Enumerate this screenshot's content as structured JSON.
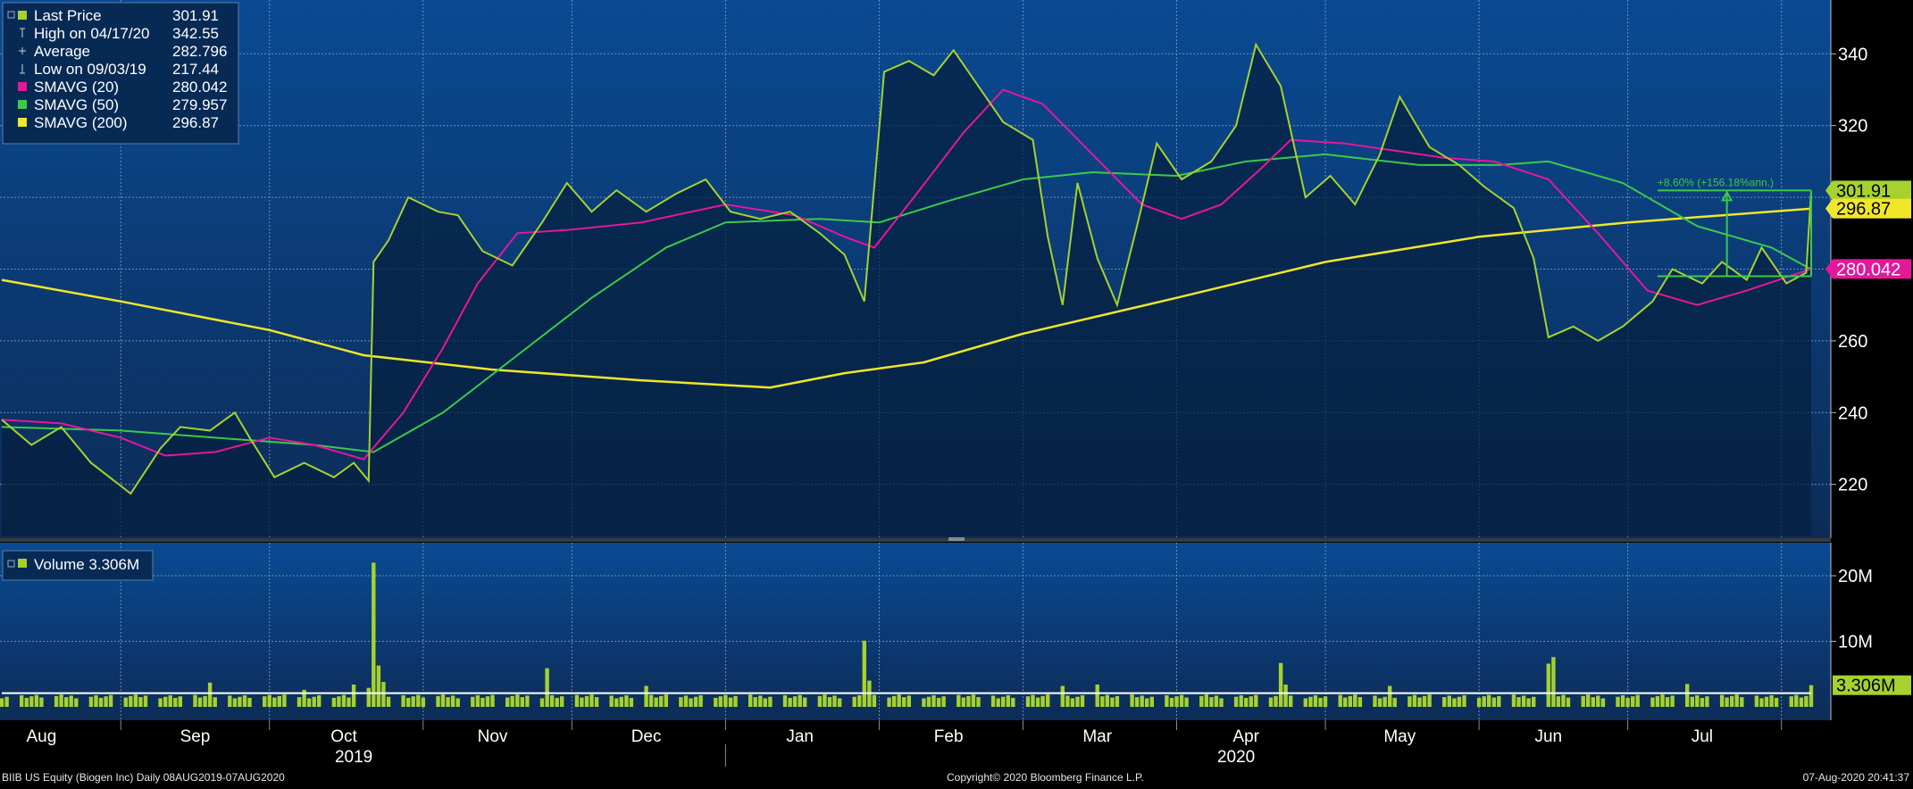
{
  "colors": {
    "price": "#a6d12f",
    "sma20": "#e5179a",
    "sma50": "#3cc94a",
    "sma200": "#f0e62a",
    "volume": "#a6d12f",
    "volume_avg": "#ffffff",
    "grid": "#6e8fb8",
    "bg_top": "#0a4a93",
    "bg_bottom": "#0c2c57"
  },
  "legend": {
    "items": [
      {
        "label": "Last Price",
        "value": "301.91",
        "icon": "filled-square",
        "color": "#a6d12f"
      },
      {
        "label": "High on 04/17/20",
        "value": "342.55",
        "icon": "high-marker",
        "color": "#cfcfcf"
      },
      {
        "label": "Average",
        "value": "282.796",
        "icon": "average-marker",
        "color": "#cfcfcf"
      },
      {
        "label": "Low on 09/03/19",
        "value": "217.44",
        "icon": "low-marker",
        "color": "#cfcfcf"
      },
      {
        "label": "SMAVG (20)",
        "value": "280.042",
        "icon": "filled-square",
        "color": "#e5179a"
      },
      {
        "label": "SMAVG (50)",
        "value": "279.957",
        "icon": "filled-square",
        "color": "#3cc94a"
      },
      {
        "label": "SMAVG (200)",
        "value": "296.87",
        "icon": "filled-square",
        "color": "#f0e62a"
      }
    ]
  },
  "volume_legend": {
    "label": "Volume 3.306M"
  },
  "annotation": {
    "text": "+8.60% (+156.18%ann.)"
  },
  "price_badges": [
    {
      "text": "301.91",
      "value": 301.91,
      "bg": "#a6d12f",
      "fg": "#000000"
    },
    {
      "text": "296.87",
      "value": 296.87,
      "bg": "#f0e62a",
      "fg": "#000000"
    },
    {
      "text": "280.042",
      "value": 280.042,
      "bg": "#e5179a",
      "fg": "#ffffff"
    }
  ],
  "volume_badge": {
    "text": "3.306M"
  },
  "footer": {
    "left": "BIIB US Equity (Biogen Inc)  Daily 08AUG2019-07AUG2020",
    "center": "Copyright© 2020 Bloomberg Finance L.P.",
    "right": "07-Aug-2020 20:41:37"
  },
  "chart_data": {
    "type": "line",
    "x_range": [
      "2019-08-08",
      "2020-08-07"
    ],
    "price_axis": {
      "ticks": [
        220,
        240,
        260,
        280,
        300,
        320,
        340
      ],
      "tick_labels": [
        "220",
        "240",
        "260",
        "280",
        "",
        "320",
        "340"
      ],
      "ylim": [
        205,
        355
      ]
    },
    "volume_axis": {
      "ticks": [
        10,
        20
      ],
      "tick_labels": [
        "10M",
        "20M"
      ],
      "ylim": [
        0,
        24.5
      ]
    },
    "x_axis": {
      "months": [
        {
          "label": "Aug",
          "date": "2019-08-16"
        },
        {
          "label": "Sep",
          "date": "2019-09-16"
        },
        {
          "label": "Oct",
          "date": "2019-10-16"
        },
        {
          "label": "Nov",
          "date": "2019-11-15"
        },
        {
          "label": "Dec",
          "date": "2019-12-16"
        },
        {
          "label": "Jan",
          "date": "2020-01-16"
        },
        {
          "label": "Feb",
          "date": "2020-02-15"
        },
        {
          "label": "Mar",
          "date": "2020-03-16"
        },
        {
          "label": "Apr",
          "date": "2020-04-15"
        },
        {
          "label": "May",
          "date": "2020-05-16"
        },
        {
          "label": "Jun",
          "date": "2020-06-15"
        },
        {
          "label": "Jul",
          "date": "2020-07-16"
        }
      ],
      "years": [
        {
          "label": "2019",
          "date": "2019-10-18"
        },
        {
          "label": "2020",
          "date": "2020-04-13"
        }
      ],
      "dividers": [
        "2019-09-01",
        "2019-10-01",
        "2019-11-01",
        "2019-12-01",
        "2020-01-01",
        "2020-02-01",
        "2020-03-01",
        "2020-04-01",
        "2020-05-01",
        "2020-06-01",
        "2020-07-01",
        "2020-08-01"
      ]
    },
    "series": [
      {
        "name": "Last Price",
        "key": "price",
        "points": [
          [
            "2019-08-08",
            238
          ],
          [
            "2019-08-14",
            231
          ],
          [
            "2019-08-20",
            236
          ],
          [
            "2019-08-26",
            226
          ],
          [
            "2019-09-03",
            217.44
          ],
          [
            "2019-09-09",
            230
          ],
          [
            "2019-09-13",
            236
          ],
          [
            "2019-09-19",
            235
          ],
          [
            "2019-09-24",
            240
          ],
          [
            "2019-09-27",
            233
          ],
          [
            "2019-10-02",
            222
          ],
          [
            "2019-10-08",
            226
          ],
          [
            "2019-10-14",
            222
          ],
          [
            "2019-10-18",
            226
          ],
          [
            "2019-10-21",
            221
          ],
          [
            "2019-10-22",
            282
          ],
          [
            "2019-10-25",
            288
          ],
          [
            "2019-10-29",
            300
          ],
          [
            "2019-11-04",
            296
          ],
          [
            "2019-11-08",
            295
          ],
          [
            "2019-11-13",
            285
          ],
          [
            "2019-11-19",
            281
          ],
          [
            "2019-11-25",
            293
          ],
          [
            "2019-11-30",
            304
          ],
          [
            "2019-12-05",
            296
          ],
          [
            "2019-12-10",
            302
          ],
          [
            "2019-12-16",
            296
          ],
          [
            "2019-12-22",
            301
          ],
          [
            "2019-12-28",
            305
          ],
          [
            "2020-01-02",
            296
          ],
          [
            "2020-01-08",
            294
          ],
          [
            "2020-01-14",
            296
          ],
          [
            "2020-01-20",
            290
          ],
          [
            "2020-01-25",
            284
          ],
          [
            "2020-01-29",
            271
          ],
          [
            "2020-02-02",
            335
          ],
          [
            "2020-02-07",
            338
          ],
          [
            "2020-02-12",
            334
          ],
          [
            "2020-02-16",
            341
          ],
          [
            "2020-02-20",
            333
          ],
          [
            "2020-02-26",
            321
          ],
          [
            "2020-03-03",
            316
          ],
          [
            "2020-03-06",
            289
          ],
          [
            "2020-03-09",
            270
          ],
          [
            "2020-03-12",
            304
          ],
          [
            "2020-03-16",
            283
          ],
          [
            "2020-03-20",
            270
          ],
          [
            "2020-03-24",
            292
          ],
          [
            "2020-03-28",
            315
          ],
          [
            "2020-04-02",
            305
          ],
          [
            "2020-04-08",
            310
          ],
          [
            "2020-04-13",
            320
          ],
          [
            "2020-04-17",
            342.55
          ],
          [
            "2020-04-22",
            331
          ],
          [
            "2020-04-27",
            300
          ],
          [
            "2020-05-02",
            306
          ],
          [
            "2020-05-07",
            298
          ],
          [
            "2020-05-12",
            312
          ],
          [
            "2020-05-16",
            328
          ],
          [
            "2020-05-22",
            314
          ],
          [
            "2020-05-28",
            309
          ],
          [
            "2020-06-02",
            303
          ],
          [
            "2020-06-08",
            297
          ],
          [
            "2020-06-12",
            283
          ],
          [
            "2020-06-15",
            261
          ],
          [
            "2020-06-20",
            264
          ],
          [
            "2020-06-25",
            260
          ],
          [
            "2020-06-30",
            264
          ],
          [
            "2020-07-06",
            271
          ],
          [
            "2020-07-10",
            280
          ],
          [
            "2020-07-16",
            276
          ],
          [
            "2020-07-20",
            282
          ],
          [
            "2020-07-25",
            277
          ],
          [
            "2020-07-28",
            286
          ],
          [
            "2020-08-02",
            276
          ],
          [
            "2020-08-06",
            279
          ],
          [
            "2020-08-07",
            301.91
          ]
        ]
      },
      {
        "name": "SMAVG (20)",
        "key": "sma20",
        "points": [
          [
            "2019-08-08",
            238
          ],
          [
            "2019-08-20",
            237
          ],
          [
            "2019-09-01",
            233
          ],
          [
            "2019-09-10",
            228
          ],
          [
            "2019-09-20",
            229
          ],
          [
            "2019-10-01",
            233
          ],
          [
            "2019-10-10",
            231
          ],
          [
            "2019-10-20",
            227
          ],
          [
            "2019-10-28",
            240
          ],
          [
            "2019-11-05",
            258
          ],
          [
            "2019-11-12",
            276
          ],
          [
            "2019-11-20",
            290
          ],
          [
            "2019-12-01",
            291
          ],
          [
            "2019-12-15",
            293
          ],
          [
            "2020-01-01",
            298
          ],
          [
            "2020-01-15",
            295
          ],
          [
            "2020-01-25",
            289
          ],
          [
            "2020-01-31",
            286
          ],
          [
            "2020-02-08",
            300
          ],
          [
            "2020-02-18",
            318
          ],
          [
            "2020-02-26",
            330
          ],
          [
            "2020-03-05",
            326
          ],
          [
            "2020-03-15",
            312
          ],
          [
            "2020-03-25",
            298
          ],
          [
            "2020-04-02",
            294
          ],
          [
            "2020-04-10",
            298
          ],
          [
            "2020-04-18",
            308
          ],
          [
            "2020-04-24",
            316
          ],
          [
            "2020-05-05",
            315
          ],
          [
            "2020-05-15",
            313
          ],
          [
            "2020-05-25",
            311
          ],
          [
            "2020-06-04",
            310
          ],
          [
            "2020-06-15",
            305
          ],
          [
            "2020-06-25",
            290
          ],
          [
            "2020-07-05",
            274
          ],
          [
            "2020-07-15",
            270
          ],
          [
            "2020-07-25",
            274
          ],
          [
            "2020-08-07",
            280.042
          ]
        ]
      },
      {
        "name": "SMAVG (50)",
        "key": "sma50",
        "points": [
          [
            "2019-08-08",
            236
          ],
          [
            "2019-09-01",
            235
          ],
          [
            "2019-09-20",
            233
          ],
          [
            "2019-10-10",
            231
          ],
          [
            "2019-10-22",
            229
          ],
          [
            "2019-11-05",
            240
          ],
          [
            "2019-11-20",
            256
          ],
          [
            "2019-12-05",
            272
          ],
          [
            "2019-12-20",
            286
          ],
          [
            "2020-01-01",
            293
          ],
          [
            "2020-01-20",
            294
          ],
          [
            "2020-02-01",
            293
          ],
          [
            "2020-02-15",
            299
          ],
          [
            "2020-03-01",
            305
          ],
          [
            "2020-03-15",
            307
          ],
          [
            "2020-04-01",
            306
          ],
          [
            "2020-04-15",
            310
          ],
          [
            "2020-05-01",
            312
          ],
          [
            "2020-05-20",
            309
          ],
          [
            "2020-06-05",
            309
          ],
          [
            "2020-06-15",
            310
          ],
          [
            "2020-06-30",
            304
          ],
          [
            "2020-07-15",
            292
          ],
          [
            "2020-07-30",
            286
          ],
          [
            "2020-08-07",
            279.957
          ]
        ]
      },
      {
        "name": "SMAVG (200)",
        "key": "sma200",
        "points": [
          [
            "2019-08-08",
            277
          ],
          [
            "2019-09-01",
            271
          ],
          [
            "2019-10-01",
            263
          ],
          [
            "2019-10-20",
            256
          ],
          [
            "2019-11-15",
            252
          ],
          [
            "2019-12-15",
            249
          ],
          [
            "2020-01-10",
            247
          ],
          [
            "2020-01-25",
            251
          ],
          [
            "2020-02-10",
            254
          ],
          [
            "2020-03-01",
            262
          ],
          [
            "2020-04-01",
            272
          ],
          [
            "2020-05-01",
            282
          ],
          [
            "2020-06-01",
            289
          ],
          [
            "2020-07-01",
            293
          ],
          [
            "2020-08-07",
            296.87
          ]
        ]
      }
    ],
    "volume": {
      "name": "Volume",
      "unit": "M",
      "baseline_millions": 1.6,
      "avg_millions": 2.1,
      "spikes": [
        [
          "2019-09-19",
          3.7
        ],
        [
          "2019-10-08",
          2.6
        ],
        [
          "2019-10-18",
          3.4
        ],
        [
          "2019-10-21",
          2.9
        ],
        [
          "2019-10-22",
          22.0
        ],
        [
          "2019-10-23",
          6.3
        ],
        [
          "2019-10-24",
          3.8
        ],
        [
          "2019-11-26",
          5.9
        ],
        [
          "2019-12-16",
          3.2
        ],
        [
          "2020-01-29",
          10.1
        ],
        [
          "2020-01-30",
          4.0
        ],
        [
          "2020-03-09",
          3.2
        ],
        [
          "2020-03-16",
          3.4
        ],
        [
          "2020-04-22",
          6.7
        ],
        [
          "2020-04-23",
          3.4
        ],
        [
          "2020-05-14",
          3.2
        ],
        [
          "2020-06-15",
          6.6
        ],
        [
          "2020-06-16",
          7.6
        ],
        [
          "2020-07-13",
          3.5
        ],
        [
          "2020-08-07",
          3.306
        ]
      ]
    },
    "trend_box": {
      "start_date": "2020-07-07",
      "end_date": "2020-08-07",
      "low": 278,
      "high": 301.91,
      "pivot_date": "2020-07-21"
    }
  }
}
